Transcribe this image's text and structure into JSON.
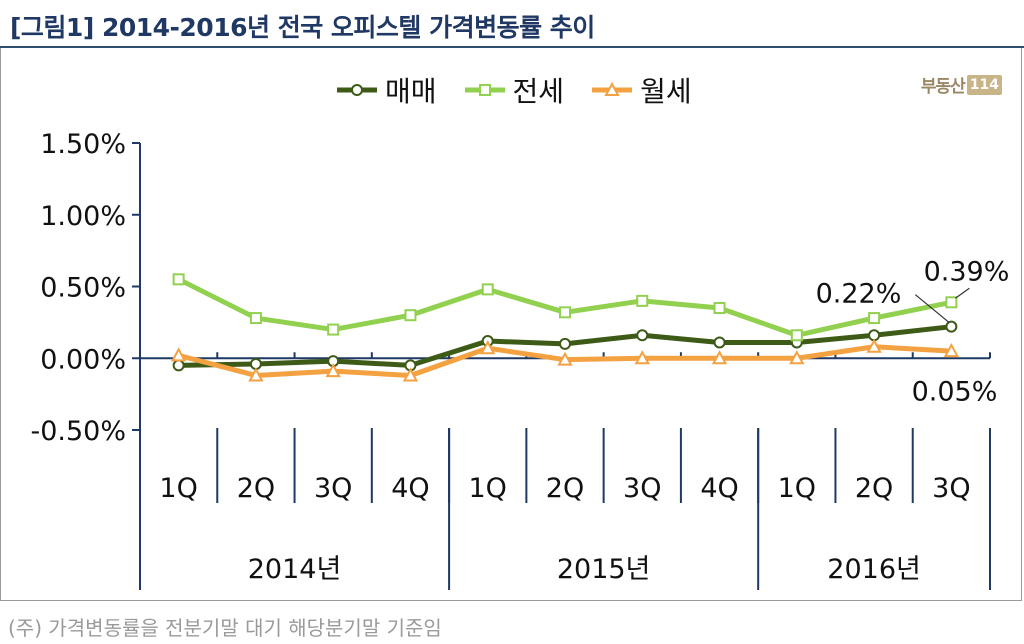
{
  "title": "[그림1] 2014-2016년 전국 오피스텔 가격변동률 추이",
  "footnote": "(주) 가격변동률을 전분기말 대기 해당분기말 기준임",
  "brand": {
    "text": "부동산",
    "box": "114"
  },
  "colors": {
    "maemae": "#3d5a16",
    "jeonse": "#92d050",
    "wolse": "#f4a142",
    "axis": "#1f3864",
    "title": "#1f3864"
  },
  "chart_data": {
    "type": "line",
    "categories": [
      "1Q",
      "2Q",
      "3Q",
      "4Q",
      "1Q",
      "2Q",
      "3Q",
      "4Q",
      "1Q",
      "2Q",
      "3Q"
    ],
    "years": [
      {
        "label": "2014년",
        "count": 4
      },
      {
        "label": "2015년",
        "count": 4
      },
      {
        "label": "2016년",
        "count": 3
      }
    ],
    "series": [
      {
        "name": "매매",
        "marker": "circle",
        "values": [
          -0.05,
          -0.04,
          -0.02,
          -0.05,
          0.12,
          0.1,
          0.16,
          0.11,
          0.11,
          0.16,
          0.22
        ]
      },
      {
        "name": "전세",
        "marker": "square",
        "values": [
          0.55,
          0.28,
          0.2,
          0.3,
          0.48,
          0.32,
          0.4,
          0.35,
          0.16,
          0.28,
          0.39
        ]
      },
      {
        "name": "월세",
        "marker": "triangle",
        "values": [
          0.02,
          -0.12,
          -0.09,
          -0.12,
          0.07,
          -0.01,
          0.0,
          0.0,
          0.0,
          0.08,
          0.05
        ]
      }
    ],
    "yticks": [
      "1.50%",
      "1.00%",
      "0.50%",
      "0.00%",
      "-0.50%"
    ],
    "ytick_values": [
      1.5,
      1.0,
      0.5,
      0.0,
      -0.5
    ],
    "ylim": [
      -0.5,
      1.5
    ],
    "annotations": [
      {
        "series": 0,
        "index": 10,
        "text": "0.22%"
      },
      {
        "series": 1,
        "index": 10,
        "text": "0.39%"
      },
      {
        "series": 2,
        "index": 10,
        "text": "0.05%"
      }
    ],
    "legend_position": "top-center",
    "grid": false
  }
}
